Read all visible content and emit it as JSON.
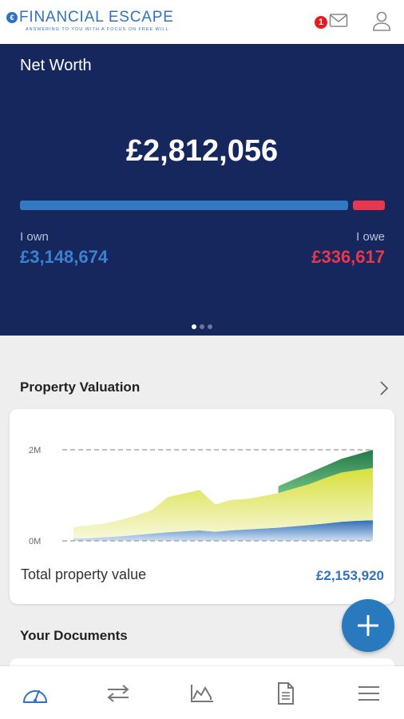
{
  "header": {
    "logo_mark": "€",
    "logo_text": "FINANCIAL ESCAPE",
    "tagline": "ANSWERING TO YOU WITH A FOCUS ON FREE WILL",
    "unread_count": "1",
    "mail_icon": "mail-icon",
    "profile_icon": "user-icon"
  },
  "net_worth": {
    "title": "Net Worth",
    "amount": "£2,812,056",
    "own_label": "I own",
    "own_value": "£3,148,674",
    "owe_label": "I owe",
    "owe_value": "£336,617",
    "own_color": "#3179c0",
    "owe_color": "#e8384f",
    "own_share": 0.903,
    "page_count": 3,
    "active_page": 0
  },
  "property": {
    "title": "Property Valuation",
    "total_label": "Total property value",
    "total_value": "£2,153,920"
  },
  "chart_data": {
    "type": "area",
    "y_ticks": [
      "2M",
      "0M"
    ],
    "ylim": [
      0,
      2000000
    ],
    "series": [
      {
        "color": "#3a7cc6",
        "values": [
          50000,
          60000,
          80000,
          100000,
          130000,
          160000,
          190000,
          210000,
          230000,
          200000,
          230000,
          250000,
          270000,
          290000,
          320000,
          350000,
          380000,
          420000,
          440000,
          450000
        ]
      },
      {
        "color": "#dde35a",
        "values": [
          300000,
          340000,
          380000,
          460000,
          560000,
          680000,
          960000,
          1040000,
          1120000,
          800000,
          900000,
          920000,
          980000,
          1050000,
          1150000,
          1250000,
          1380000,
          1500000,
          1550000,
          1600000
        ]
      },
      {
        "color": "#2e8a52",
        "values": [
          null,
          null,
          null,
          null,
          null,
          null,
          null,
          null,
          null,
          null,
          null,
          null,
          null,
          1200000,
          1350000,
          1500000,
          1650000,
          1800000,
          1900000,
          2000000
        ]
      }
    ]
  },
  "documents": {
    "title": "Your Documents"
  },
  "nav": [
    {
      "name": "dashboard",
      "icon": "gauge-icon"
    },
    {
      "name": "transactions",
      "icon": "transfer-icon"
    },
    {
      "name": "charts",
      "icon": "area-chart-icon"
    },
    {
      "name": "documents",
      "icon": "document-icon"
    },
    {
      "name": "menu",
      "icon": "menu-icon"
    }
  ]
}
